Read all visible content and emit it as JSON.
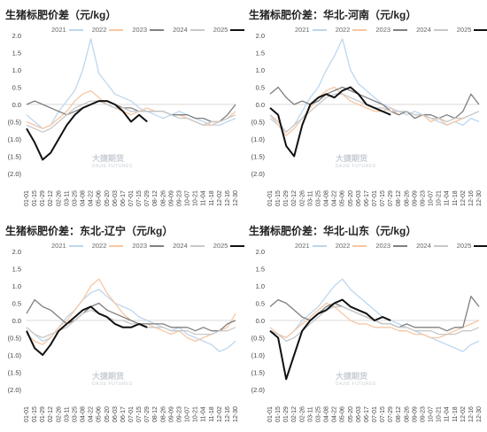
{
  "watermark": {
    "cn": "大捷期货",
    "en": "DAJIE FUTURES"
  },
  "chart_data": [
    {
      "type": "line",
      "title": "生猪标肥价差（元/kg）",
      "legend_position": "top",
      "ylim": [
        -2.0,
        2.0
      ],
      "y_ticks": [
        "2.0",
        "1.5",
        "1.0",
        "0.5",
        "0.0",
        "(0.5)",
        "(1.0)",
        "(1.5)",
        "(2.0)"
      ],
      "y_tick_values": [
        2.0,
        1.5,
        1.0,
        0.5,
        0.0,
        -0.5,
        -1.0,
        -1.5,
        -2.0
      ],
      "categories": [
        "01-01",
        "01-15",
        "01-29",
        "02-12",
        "02-26",
        "03-11",
        "03-25",
        "04-08",
        "04-22",
        "05-06",
        "05-20",
        "06-03",
        "06-17",
        "07-01",
        "07-15",
        "07-29",
        "08-12",
        "08-26",
        "09-09",
        "09-23",
        "10-07",
        "10-21",
        "11-04",
        "11-18",
        "12-02",
        "12-16",
        "12-30"
      ],
      "series": [
        {
          "name": "2021",
          "color": "#bcd7f0",
          "values": [
            -0.3,
            -0.5,
            -0.7,
            -0.6,
            -0.2,
            0.1,
            0.4,
            1.0,
            1.9,
            0.9,
            0.6,
            0.3,
            0.2,
            0.1,
            -0.1,
            -0.2,
            -0.3,
            -0.4,
            -0.3,
            -0.2,
            -0.3,
            -0.4,
            -0.5,
            -0.6,
            -0.6,
            -0.5,
            -0.4
          ]
        },
        {
          "name": "2022",
          "color": "#f7c7a3",
          "values": [
            -0.5,
            -0.6,
            -0.7,
            -0.6,
            -0.4,
            -0.2,
            0.1,
            0.3,
            0.4,
            0.2,
            0.0,
            -0.1,
            -0.2,
            -0.3,
            -0.2,
            -0.1,
            -0.2,
            -0.2,
            -0.3,
            -0.3,
            -0.4,
            -0.5,
            -0.6,
            -0.6,
            -0.5,
            -0.4,
            -0.2
          ]
        },
        {
          "name": "2023",
          "color": "#808080",
          "values": [
            0.0,
            0.1,
            0.0,
            -0.1,
            -0.2,
            -0.3,
            -0.2,
            -0.1,
            0.0,
            0.1,
            0.1,
            0.0,
            -0.1,
            -0.1,
            -0.2,
            -0.2,
            -0.2,
            -0.2,
            -0.3,
            -0.3,
            -0.3,
            -0.4,
            -0.4,
            -0.5,
            -0.5,
            -0.3,
            0.0
          ]
        },
        {
          "name": "2024",
          "color": "#c8c8c8",
          "values": [
            -0.6,
            -0.7,
            -0.8,
            -0.7,
            -0.5,
            -0.3,
            -0.1,
            0.0,
            0.1,
            0.1,
            0.0,
            -0.1,
            -0.1,
            -0.2,
            -0.2,
            -0.2,
            -0.2,
            -0.2,
            -0.3,
            -0.4,
            -0.4,
            -0.5,
            -0.6,
            -0.5,
            -0.5,
            -0.4,
            -0.3
          ]
        },
        {
          "name": "2025",
          "color": "#111111",
          "values": [
            -0.7,
            -1.1,
            -1.6,
            -1.4,
            -1.0,
            -0.6,
            -0.3,
            -0.1,
            0.0,
            0.1,
            0.1,
            0.0,
            -0.2,
            -0.5,
            -0.3,
            -0.5,
            null,
            null,
            null,
            null,
            null,
            null,
            null,
            null,
            null,
            null,
            null
          ]
        }
      ]
    },
    {
      "type": "line",
      "title": "生猪标肥价差：华北-河南（元/kg）",
      "legend_position": "top",
      "ylim": [
        -2.0,
        2.0
      ],
      "y_ticks": [
        "2.0",
        "1.5",
        "1.0",
        "0.5",
        "0.0",
        "(0.5)",
        "(1.0)",
        "(1.5)",
        "(2.0)"
      ],
      "y_tick_values": [
        2.0,
        1.5,
        1.0,
        0.5,
        0.0,
        -0.5,
        -1.0,
        -1.5,
        -2.0
      ],
      "categories": [
        "01-01",
        "01-15",
        "01-29",
        "02-12",
        "02-26",
        "03-11",
        "03-25",
        "04-08",
        "04-22",
        "05-06",
        "05-20",
        "06-03",
        "06-17",
        "07-01",
        "07-15",
        "07-29",
        "08-12",
        "08-26",
        "09-09",
        "09-23",
        "10-07",
        "10-21",
        "11-04",
        "11-18",
        "12-02",
        "12-16",
        "12-30"
      ],
      "series": [
        {
          "name": "2021",
          "color": "#bcd7f0",
          "values": [
            -0.4,
            -0.6,
            -0.8,
            -0.6,
            -0.2,
            0.2,
            0.5,
            1.0,
            1.4,
            1.9,
            1.0,
            0.6,
            0.4,
            0.2,
            0.0,
            -0.1,
            -0.2,
            -0.3,
            -0.2,
            -0.3,
            -0.4,
            -0.5,
            -0.6,
            -0.5,
            -0.6,
            -0.4,
            -0.5
          ]
        },
        {
          "name": "2022",
          "color": "#f7c7a3",
          "values": [
            -0.3,
            -0.6,
            -0.9,
            -0.7,
            -0.4,
            -0.1,
            0.2,
            0.4,
            0.5,
            0.3,
            0.1,
            0.0,
            -0.1,
            -0.2,
            -0.2,
            -0.1,
            -0.3,
            -0.2,
            -0.4,
            -0.3,
            -0.5,
            -0.4,
            -0.6,
            -0.5,
            -0.4,
            -0.3,
            -0.2
          ]
        },
        {
          "name": "2023",
          "color": "#808080",
          "values": [
            0.3,
            0.5,
            0.2,
            0.0,
            0.1,
            0.0,
            0.1,
            0.3,
            0.4,
            0.5,
            0.4,
            0.3,
            0.2,
            0.1,
            0.0,
            -0.2,
            -0.3,
            -0.2,
            -0.4,
            -0.3,
            -0.3,
            -0.4,
            -0.3,
            -0.4,
            -0.2,
            0.3,
            0.0
          ]
        },
        {
          "name": "2024",
          "color": "#c8c8c8",
          "values": [
            -0.3,
            -0.5,
            -0.8,
            -0.6,
            -0.4,
            -0.2,
            0.0,
            0.2,
            0.3,
            0.3,
            0.2,
            0.1,
            0.0,
            -0.1,
            -0.1,
            -0.2,
            -0.2,
            -0.2,
            -0.3,
            -0.3,
            -0.4,
            -0.4,
            -0.5,
            -0.4,
            -0.4,
            -0.3,
            -0.2
          ]
        },
        {
          "name": "2025",
          "color": "#111111",
          "values": [
            -0.1,
            -0.3,
            -1.2,
            -1.5,
            -0.6,
            0.0,
            0.2,
            0.3,
            0.2,
            0.4,
            0.5,
            0.3,
            0.0,
            -0.1,
            -0.2,
            -0.3,
            null,
            null,
            null,
            null,
            null,
            null,
            null,
            null,
            null,
            null,
            null
          ]
        }
      ]
    },
    {
      "type": "line",
      "title": "生猪标肥价差：东北-辽宁（元/kg）",
      "legend_position": "top",
      "ylim": [
        -2.0,
        2.0
      ],
      "y_ticks": [
        "2.0",
        "1.5",
        "1.0",
        "0.5",
        "0.0",
        "(0.5)",
        "(1.0)",
        "(1.5)",
        "(2.0)"
      ],
      "y_tick_values": [
        2.0,
        1.5,
        1.0,
        0.5,
        0.0,
        -0.5,
        -1.0,
        -1.5,
        -2.0
      ],
      "categories": [
        "01-01",
        "01-15",
        "01-29",
        "02-12",
        "02-26",
        "03-11",
        "03-25",
        "04-08",
        "04-22",
        "05-06",
        "05-20",
        "06-03",
        "06-17",
        "07-01",
        "07-15",
        "07-29",
        "08-12",
        "08-26",
        "09-09",
        "09-23",
        "10-07",
        "10-21",
        "11-04",
        "11-18",
        "12-02",
        "12-16",
        "12-30"
      ],
      "series": [
        {
          "name": "2021",
          "color": "#bcd7f0",
          "values": [
            -0.2,
            -0.4,
            -0.6,
            -0.5,
            -0.2,
            0.1,
            0.3,
            0.6,
            0.8,
            0.9,
            0.7,
            0.5,
            0.4,
            0.3,
            0.1,
            0.0,
            -0.1,
            -0.2,
            -0.3,
            -0.2,
            -0.4,
            -0.5,
            -0.6,
            -0.7,
            -0.9,
            -0.8,
            -0.6
          ]
        },
        {
          "name": "2022",
          "color": "#f7c7a3",
          "values": [
            -0.4,
            -0.6,
            -0.7,
            -0.5,
            -0.2,
            0.0,
            0.3,
            0.6,
            1.0,
            1.2,
            0.8,
            0.5,
            0.2,
            0.0,
            -0.1,
            -0.1,
            -0.2,
            -0.3,
            -0.4,
            -0.3,
            -0.5,
            -0.6,
            -0.5,
            -0.4,
            -0.3,
            -0.2,
            0.2
          ]
        },
        {
          "name": "2023",
          "color": "#808080",
          "values": [
            0.2,
            0.6,
            0.4,
            0.3,
            0.1,
            -0.1,
            0.0,
            0.2,
            0.4,
            0.5,
            0.3,
            0.2,
            0.1,
            0.0,
            -0.1,
            -0.1,
            -0.1,
            -0.1,
            -0.2,
            -0.2,
            -0.2,
            -0.3,
            -0.2,
            -0.3,
            -0.3,
            -0.1,
            0.0
          ]
        },
        {
          "name": "2024",
          "color": "#c8c8c8",
          "values": [
            -0.2,
            -0.4,
            -0.5,
            -0.4,
            -0.3,
            -0.2,
            0.0,
            0.2,
            0.3,
            0.2,
            0.1,
            0.0,
            0.0,
            -0.1,
            -0.1,
            -0.2,
            -0.2,
            -0.2,
            -0.3,
            -0.3,
            -0.3,
            -0.4,
            -0.4,
            -0.4,
            -0.3,
            -0.3,
            -0.2
          ]
        },
        {
          "name": "2025",
          "color": "#111111",
          "values": [
            -0.3,
            -0.8,
            -1.0,
            -0.7,
            -0.3,
            -0.1,
            0.1,
            0.3,
            0.4,
            0.2,
            0.1,
            -0.1,
            -0.2,
            -0.2,
            -0.1,
            -0.2,
            null,
            null,
            null,
            null,
            null,
            null,
            null,
            null,
            null,
            null,
            null
          ]
        }
      ]
    },
    {
      "type": "line",
      "title": "生猪标肥价差：华北-山东（元/kg）",
      "legend_position": "top",
      "ylim": [
        -2.0,
        2.0
      ],
      "y_ticks": [
        "2.0",
        "1.5",
        "1.0",
        "0.5",
        "0.0",
        "(0.5)",
        "(1.0)",
        "(1.5)",
        "(2.0)"
      ],
      "y_tick_values": [
        2.0,
        1.5,
        1.0,
        0.5,
        0.0,
        -0.5,
        -1.0,
        -1.5,
        -2.0
      ],
      "categories": [
        "01-01",
        "01-15",
        "01-29",
        "02-12",
        "02-26",
        "03-11",
        "03-25",
        "04-08",
        "04-22",
        "05-06",
        "05-20",
        "06-03",
        "06-17",
        "07-01",
        "07-15",
        "07-29",
        "08-12",
        "08-26",
        "09-09",
        "09-23",
        "10-07",
        "10-21",
        "11-04",
        "11-18",
        "12-02",
        "12-16",
        "12-30"
      ],
      "series": [
        {
          "name": "2021",
          "color": "#bcd7f0",
          "values": [
            -0.3,
            -0.4,
            -0.5,
            -0.3,
            0.0,
            0.2,
            0.4,
            0.7,
            1.0,
            1.2,
            0.9,
            0.7,
            0.5,
            0.3,
            0.1,
            0.0,
            -0.1,
            -0.2,
            -0.3,
            -0.4,
            -0.5,
            -0.6,
            -0.7,
            -0.8,
            -0.9,
            -0.7,
            -0.6
          ]
        },
        {
          "name": "2022",
          "color": "#f7c7a3",
          "values": [
            -0.2,
            -0.4,
            -0.5,
            -0.3,
            -0.1,
            0.1,
            0.3,
            0.5,
            0.4,
            0.2,
            0.0,
            -0.1,
            -0.1,
            -0.2,
            -0.2,
            -0.2,
            -0.3,
            -0.3,
            -0.4,
            -0.4,
            -0.5,
            -0.5,
            -0.4,
            -0.3,
            -0.2,
            -0.1,
            0.0
          ]
        },
        {
          "name": "2023",
          "color": "#808080",
          "values": [
            0.4,
            0.6,
            0.5,
            0.3,
            0.1,
            0.0,
            0.2,
            0.4,
            0.5,
            0.4,
            0.3,
            0.2,
            0.1,
            0.0,
            -0.1,
            -0.1,
            -0.2,
            -0.1,
            -0.2,
            -0.2,
            -0.2,
            -0.2,
            -0.3,
            -0.2,
            -0.2,
            0.7,
            0.4
          ]
        },
        {
          "name": "2024",
          "color": "#c8c8c8",
          "values": [
            -0.3,
            -0.4,
            -0.6,
            -0.5,
            -0.3,
            -0.1,
            0.1,
            0.3,
            0.4,
            0.4,
            0.3,
            0.2,
            0.1,
            0.0,
            -0.1,
            -0.1,
            -0.2,
            -0.2,
            -0.3,
            -0.3,
            -0.3,
            -0.4,
            -0.4,
            -0.4,
            -0.3,
            -0.3,
            -0.2
          ]
        },
        {
          "name": "2025",
          "color": "#111111",
          "values": [
            -0.3,
            -0.5,
            -1.7,
            -1.0,
            -0.3,
            0.0,
            0.2,
            0.3,
            0.5,
            0.6,
            0.4,
            0.3,
            0.2,
            0.0,
            0.1,
            0.0,
            null,
            null,
            null,
            null,
            null,
            null,
            null,
            null,
            null,
            null,
            null
          ]
        }
      ]
    }
  ]
}
